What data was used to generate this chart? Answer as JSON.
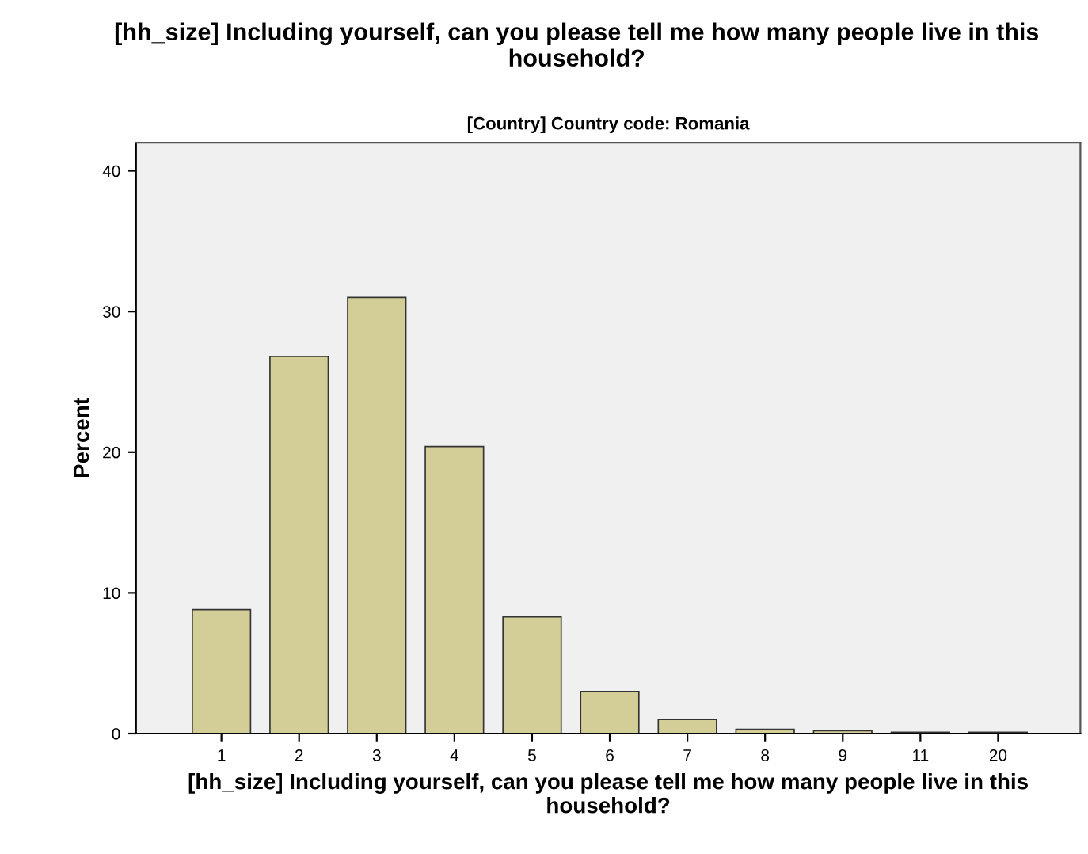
{
  "chart_data": {
    "type": "bar",
    "title": "[hh_size] Including yourself, can you please tell me how many people live in this household?",
    "subtitle": "[Country] Country code: Romania",
    "xlabel": "[hh_size] Including yourself, can you please tell me how many people live in this household?",
    "ylabel": "Percent",
    "categories": [
      "1",
      "2",
      "3",
      "4",
      "5",
      "6",
      "7",
      "8",
      "9",
      "11",
      "20"
    ],
    "values": [
      8.8,
      26.8,
      31.0,
      20.4,
      8.3,
      3.0,
      1.0,
      0.3,
      0.2,
      0.1,
      0.1
    ],
    "color": "#d3ce97",
    "ylim": [
      0,
      42
    ],
    "yticks": [
      0,
      10,
      20,
      30,
      40
    ],
    "grid": false,
    "legend": false
  }
}
